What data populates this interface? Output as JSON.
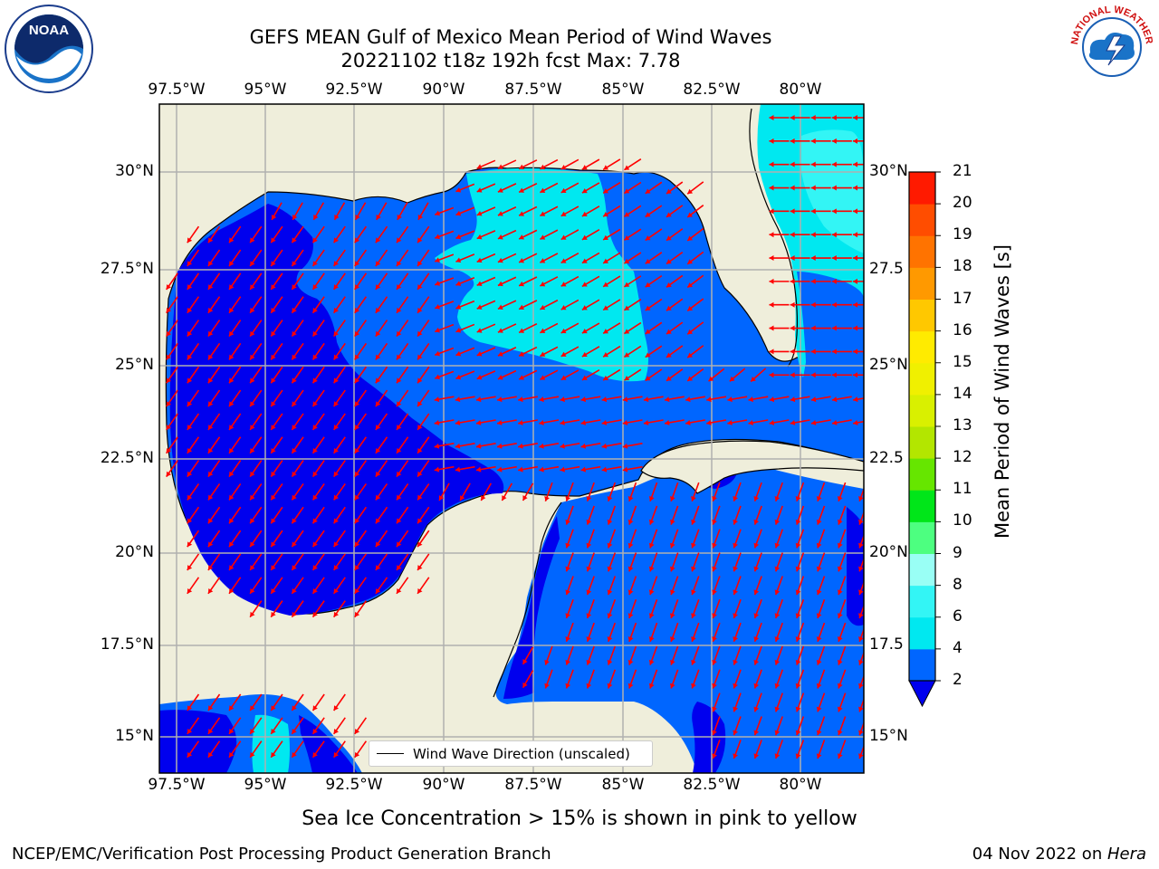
{
  "title": {
    "line1": "GEFS MEAN Gulf of Mexico Mean Period of Wind Waves",
    "line2": "20221102 t18z 192h fcst   Max: 7.78"
  },
  "axes": {
    "lon_ticks": [
      "97.5°W",
      "95°W",
      "92.5°W",
      "90°W",
      "87.5°W",
      "85°W",
      "82.5°W",
      "80°W"
    ],
    "lat_ticks_left": [
      "30°N",
      "27.5°N",
      "25°N",
      "22.5°N",
      "20°N",
      "17.5°N",
      "15°N"
    ],
    "lat_ticks_right": [
      "30°N",
      "27.5",
      "25°N",
      "22.5",
      "20°N",
      "17.5",
      "15°N"
    ]
  },
  "colorbar": {
    "title": "Mean Period of Wind Waves [s]",
    "levels": [
      "2",
      "4",
      "6",
      "8",
      "9",
      "10",
      "11",
      "12",
      "13",
      "14",
      "15",
      "16",
      "17",
      "18",
      "19",
      "20",
      "21"
    ],
    "colors": [
      "#0066ff",
      "#00e8f0",
      "#33f5f5",
      "#99fff5",
      "#4dff80",
      "#00e619",
      "#66e600",
      "#b3e600",
      "#d9f000",
      "#f0f000",
      "#ffeb00",
      "#ffc800",
      "#ff9900",
      "#ff7300",
      "#ff4d00",
      "#ff1a00"
    ],
    "under_color": "#0000ee"
  },
  "legend": {
    "label": "Wind Wave Direction (unscaled)"
  },
  "note": "Sea Ice Concentration > 15% is shown in pink to yellow",
  "footer": {
    "left": "NCEP/EMC/Verification Post Processing Product Generation Branch",
    "right_date": "04 Nov 2022 on ",
    "right_host": "Hera"
  },
  "logos": {
    "noaa": "NOAA",
    "nws_text": "NATIONAL WEATHER SERVICE"
  },
  "colors": {
    "land": "#efeedb",
    "wave_2_4": "#0066ff",
    "wave_4_6": "#00e8f0",
    "wave_under": "#0000ee",
    "arrow": "#ff0000",
    "grid": "#b0b0b0"
  }
}
